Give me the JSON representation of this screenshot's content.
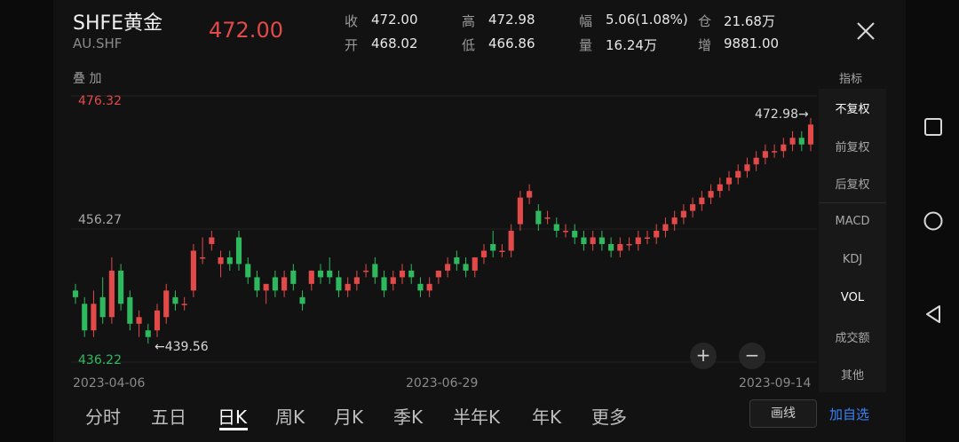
{
  "header": {
    "title": "SHFE黄金",
    "code": "AU.SHF",
    "price": "472.00",
    "stats": [
      {
        "label": "收",
        "value": "472.00"
      },
      {
        "label": "高",
        "value": "472.98"
      },
      {
        "label": "幅",
        "value": "5.06(1.08%)"
      },
      {
        "label": "仓",
        "value": "21.68万"
      },
      {
        "label": "开",
        "value": "468.02"
      },
      {
        "label": "低",
        "value": "466.86"
      },
      {
        "label": "量",
        "value": "16.24万"
      },
      {
        "label": "增",
        "value": "9881.00"
      }
    ]
  },
  "overlay_label": "叠 加",
  "indicator_label": "指标",
  "chart": {
    "y_max": "476.32",
    "y_mid": "456.27",
    "y_min": "436.22",
    "low_marker": "←439.56",
    "high_marker": "472.98→",
    "dates": [
      "2023-04-06",
      "2023-06-29",
      "2023-09-14"
    ]
  },
  "side_menu": [
    "不复权",
    "前复权",
    "后复权",
    "MACD",
    "KDJ",
    "VOL",
    "成交额",
    "其他"
  ],
  "tabs": [
    "分时",
    "五日",
    "日K",
    "周K",
    "月K",
    "季K",
    "半年K",
    "年K",
    "更多"
  ],
  "active_tab": "日K",
  "buttons": {
    "draw": "画线",
    "add": "加自选",
    "zoom_in": "+",
    "zoom_out": "−"
  },
  "colors": {
    "up": "#e24a4a",
    "down": "#2fb95f",
    "background": "#121212"
  },
  "icons": [
    "close-icon",
    "square-nav-icon",
    "circle-nav-icon",
    "back-nav-icon"
  ],
  "chart_data": {
    "type": "candlestick",
    "x_range": [
      "2023-04-06",
      "2023-09-14"
    ],
    "ylim": [
      436.22,
      476.32
    ],
    "high": 472.98,
    "low": 439.56,
    "last_close": 472.0,
    "ohlc": [
      [
        447,
        448,
        445,
        446
      ],
      [
        445,
        446,
        440,
        441
      ],
      [
        441,
        447,
        440,
        445
      ],
      [
        446,
        449,
        442,
        443
      ],
      [
        443,
        452,
        442,
        450
      ],
      [
        450,
        451,
        444,
        445
      ],
      [
        446,
        447,
        441,
        442
      ],
      [
        442,
        444,
        440,
        443
      ],
      [
        441,
        442,
        439,
        440
      ],
      [
        441,
        445,
        440,
        444
      ],
      [
        443,
        448,
        442,
        447
      ],
      [
        446,
        447,
        444,
        445
      ],
      [
        445,
        446,
        444,
        445
      ],
      [
        447,
        454,
        446,
        453
      ],
      [
        452,
        455,
        451,
        452
      ],
      [
        454,
        456,
        453,
        455
      ],
      [
        451,
        453,
        449,
        452
      ],
      [
        452,
        453,
        450,
        451
      ],
      [
        455,
        456,
        450,
        451
      ],
      [
        451,
        452,
        448,
        449
      ],
      [
        449,
        450,
        446,
        447
      ],
      [
        447,
        448,
        445,
        448
      ],
      [
        449,
        450,
        446,
        447
      ],
      [
        447,
        450,
        446,
        449
      ],
      [
        450,
        451,
        447,
        448
      ],
      [
        446,
        447,
        444,
        445
      ],
      [
        448,
        450,
        447,
        450
      ],
      [
        450,
        451,
        448,
        449
      ],
      [
        450,
        452,
        448,
        449
      ],
      [
        449,
        450,
        446,
        447
      ],
      [
        447,
        449,
        446,
        448
      ],
      [
        448,
        450,
        447,
        449
      ],
      [
        450,
        451,
        449,
        450
      ],
      [
        451,
        452,
        448,
        449
      ],
      [
        449,
        450,
        446,
        447
      ],
      [
        448,
        450,
        447,
        449
      ],
      [
        449,
        451,
        448,
        450
      ],
      [
        450,
        451,
        448,
        449
      ],
      [
        448,
        449,
        446,
        447
      ],
      [
        447,
        449,
        446,
        448
      ],
      [
        449,
        450,
        448,
        450
      ],
      [
        450,
        452,
        449,
        451
      ],
      [
        452,
        453,
        450,
        451
      ],
      [
        451,
        452,
        449,
        450
      ],
      [
        450,
        452,
        449,
        452
      ],
      [
        452,
        454,
        451,
        453
      ],
      [
        454,
        456,
        452,
        453
      ],
      [
        453,
        454,
        452,
        453
      ],
      [
        453,
        457,
        452,
        456
      ],
      [
        457,
        462,
        456,
        461
      ],
      [
        461,
        463,
        460,
        462
      ],
      [
        459,
        460,
        456,
        457
      ],
      [
        458,
        459,
        457,
        458
      ],
      [
        457,
        458,
        455,
        456
      ],
      [
        456,
        457,
        455,
        456
      ],
      [
        456,
        457,
        454,
        455
      ],
      [
        455,
        456,
        453,
        454
      ],
      [
        454,
        456,
        453,
        455
      ],
      [
        455,
        456,
        453,
        454
      ],
      [
        454,
        455,
        452,
        453
      ],
      [
        453,
        455,
        452,
        454
      ],
      [
        454,
        455,
        453,
        454
      ],
      [
        454,
        456,
        453,
        455
      ],
      [
        455,
        456,
        454,
        455
      ],
      [
        455,
        457,
        454,
        456
      ],
      [
        456,
        458,
        455,
        457
      ],
      [
        457,
        459,
        456,
        458
      ],
      [
        458,
        460,
        457,
        459
      ],
      [
        459,
        461,
        458,
        460
      ],
      [
        460,
        462,
        459,
        461
      ],
      [
        461,
        463,
        460,
        462
      ],
      [
        462,
        464,
        461,
        463
      ],
      [
        463,
        465,
        462,
        464
      ],
      [
        464,
        466,
        463,
        465
      ],
      [
        465,
        467,
        464,
        466
      ],
      [
        466,
        468,
        465,
        467
      ],
      [
        467,
        469,
        466,
        468
      ],
      [
        468,
        469,
        467,
        468
      ],
      [
        468,
        470,
        467,
        469
      ],
      [
        469,
        471,
        468,
        470
      ],
      [
        470,
        471,
        468,
        469
      ],
      [
        469,
        472.98,
        468,
        472
      ]
    ]
  }
}
